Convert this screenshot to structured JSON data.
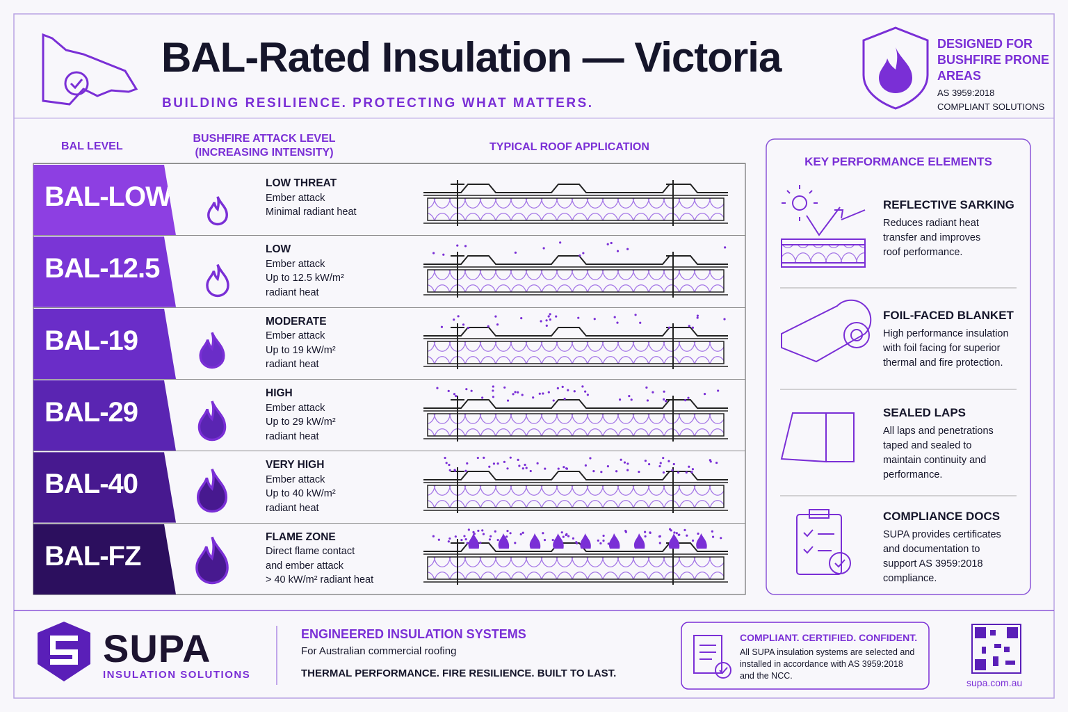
{
  "header": {
    "title": "BAL-Rated Insulation — Victoria",
    "tagline": "BUILDING RESILIENCE. PROTECTING WHAT MATTERS.",
    "badge": {
      "heading": [
        "DESIGNED FOR",
        "BUSHFIRE PRONE",
        "AREAS"
      ],
      "note": [
        "AS 3959:2018",
        "COMPLIANT SOLUTIONS"
      ]
    }
  },
  "table": {
    "columns": {
      "level": "BAL LEVEL",
      "attack": [
        "BUSHFIRE ATTACK LEVEL",
        "(INCREASING INTENSITY)"
      ],
      "roof": "TYPICAL ROOF APPLICATION"
    },
    "rows": [
      {
        "level": "BAL-LOW",
        "threat": "LOW THREAT",
        "details": [
          "Ember attack",
          "Minimal radiant heat"
        ]
      },
      {
        "level": "BAL-12.5",
        "threat": "LOW",
        "details": [
          "Ember attack",
          "Up to 12.5 kW/m²",
          "radiant heat"
        ]
      },
      {
        "level": "BAL-19",
        "threat": "MODERATE",
        "details": [
          "Ember attack",
          "Up to 19 kW/m²",
          "radiant heat"
        ]
      },
      {
        "level": "BAL-29",
        "threat": "HIGH",
        "details": [
          "Ember attack",
          "Up to 29 kW/m²",
          "radiant heat"
        ]
      },
      {
        "level": "BAL-40",
        "threat": "VERY HIGH",
        "details": [
          "Ember attack",
          "Up to 40 kW/m²",
          "radiant heat"
        ]
      },
      {
        "level": "BAL-FZ",
        "threat": "FLAME ZONE",
        "details": [
          "Direct flame contact",
          "and ember attack",
          "> 40 kW/m² radiant heat"
        ]
      }
    ]
  },
  "key_elements": {
    "title": "KEY PERFORMANCE ELEMENTS",
    "items": [
      {
        "title": "REFLECTIVE SARKING",
        "lines": [
          "Reduces radiant heat",
          "transfer and improves",
          "roof performance."
        ]
      },
      {
        "title": "FOIL-FACED BLANKET",
        "lines": [
          "High performance insulation",
          "with foil facing for superior",
          "thermal and fire protection."
        ]
      },
      {
        "title": "SEALED LAPS",
        "lines": [
          "All laps and penetrations",
          "taped and sealed to",
          "maintain continuity and",
          "performance."
        ]
      },
      {
        "title": "COMPLIANCE DOCS",
        "lines": [
          "SUPA provides certificates",
          "and documentation to",
          "support AS 3959:2018",
          "compliance."
        ]
      }
    ]
  },
  "footer": {
    "brand": "SUPA",
    "brand_sub": "INSULATION SOLUTIONS",
    "heading": "ENGINEERED INSULATION SYSTEMS",
    "subheading": "For Australian commercial roofing",
    "motto": "THERMAL PERFORMANCE. FIRE RESILIENCE. BUILT TO LAST.",
    "notice": {
      "title": "COMPLIANT. CERTIFIED. CONFIDENT.",
      "lines": [
        "All SUPA insulation systems are selected and",
        "installed in accordance with AS 3959:2018",
        "and the NCC."
      ]
    },
    "url": "supa.com.au"
  }
}
